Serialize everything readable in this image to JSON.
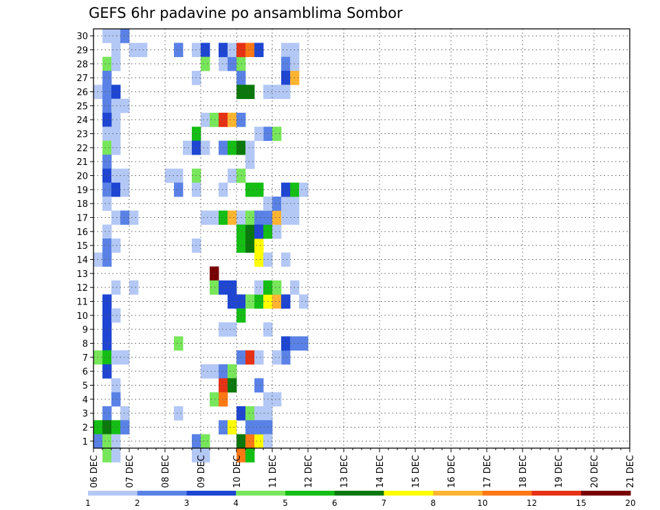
{
  "chart_data": {
    "type": "heatmap",
    "title": "GEFS 6hr padavine po ansamblima Sombor",
    "xlabel": "",
    "ylabel": "",
    "x_tick_labels": [
      "06 DEC",
      "07 DEC",
      "08 DEC",
      "09 DEC",
      "10 DEC",
      "11 DEC",
      "12 DEC",
      "13 DEC",
      "14 DEC",
      "15 DEC",
      "16 DEC",
      "17 DEC",
      "18 DEC",
      "19 DEC",
      "20 DEC",
      "21 DEC"
    ],
    "y_tick_labels": [
      "1",
      "2",
      "3",
      "4",
      "5",
      "6",
      "7",
      "8",
      "9",
      "10",
      "11",
      "12",
      "13",
      "14",
      "15",
      "16",
      "17",
      "18",
      "19",
      "20",
      "21",
      "22",
      "23",
      "24",
      "25",
      "26",
      "27",
      "28",
      "29",
      "30"
    ],
    "time_steps_per_day": 4,
    "xlim": [
      0,
      60
    ],
    "ylim": [
      0.5,
      30.5
    ],
    "grid": true,
    "colorbar": {
      "levels": [
        "1",
        "2",
        "3",
        "4",
        "5",
        "6",
        "7",
        "8",
        "10",
        "12",
        "15",
        "20"
      ],
      "colors": [
        "#b4c8f5",
        "#5a82e6",
        "#1e46d2",
        "#78e65a",
        "#14be14",
        "#0a780a",
        "#ffff00",
        "#ffb432",
        "#ff7814",
        "#e63214",
        "#780000"
      ]
    },
    "cells": [
      [
        1,
        30,
        0
      ],
      [
        2,
        30,
        0
      ],
      [
        2,
        29,
        0
      ],
      [
        1,
        28,
        3
      ],
      [
        2,
        28,
        0
      ],
      [
        1,
        27,
        1
      ],
      [
        0,
        26,
        0
      ],
      [
        1,
        26,
        1
      ],
      [
        2,
        26,
        2
      ],
      [
        1,
        25,
        1
      ],
      [
        2,
        25,
        0
      ],
      [
        3,
        25,
        0
      ],
      [
        2,
        24,
        0
      ],
      [
        1,
        24,
        2
      ],
      [
        1,
        23,
        0
      ],
      [
        2,
        23,
        0
      ],
      [
        1,
        22,
        3
      ],
      [
        2,
        22,
        0
      ],
      [
        1,
        21,
        1
      ],
      [
        1,
        20,
        2
      ],
      [
        2,
        20,
        0
      ],
      [
        3,
        20,
        0
      ],
      [
        1,
        19,
        1
      ],
      [
        2,
        19,
        2
      ],
      [
        3,
        19,
        0
      ],
      [
        1,
        18,
        0
      ],
      [
        2,
        17,
        0
      ],
      [
        3,
        17,
        1
      ],
      [
        4,
        17,
        0
      ],
      [
        1,
        16,
        0
      ],
      [
        1,
        15,
        1
      ],
      [
        2,
        15,
        0
      ],
      [
        0,
        14,
        0
      ],
      [
        1,
        14,
        1
      ],
      [
        2,
        12,
        0
      ],
      [
        1,
        11,
        2
      ],
      [
        1,
        10,
        2
      ],
      [
        2,
        10,
        0
      ],
      [
        1,
        9,
        2
      ],
      [
        1,
        8,
        2
      ],
      [
        0,
        7,
        3
      ],
      [
        1,
        7,
        4
      ],
      [
        2,
        7,
        0
      ],
      [
        3,
        7,
        0
      ],
      [
        1,
        6,
        2
      ],
      [
        2,
        5,
        0
      ],
      [
        2,
        4,
        1
      ],
      [
        1,
        3,
        1
      ],
      [
        3,
        3,
        0
      ],
      [
        0,
        2,
        4
      ],
      [
        1,
        2,
        5
      ],
      [
        2,
        2,
        4
      ],
      [
        3,
        2,
        1
      ],
      [
        0,
        1,
        1
      ],
      [
        1,
        1,
        3
      ],
      [
        2,
        1,
        0
      ],
      [
        1,
        0,
        3
      ],
      [
        2,
        0,
        0
      ],
      [
        3,
        30,
        1
      ],
      [
        4,
        29,
        0
      ],
      [
        5,
        29,
        0
      ],
      [
        4,
        12,
        0
      ],
      [
        9,
        29,
        1
      ],
      [
        8,
        20,
        0
      ],
      [
        9,
        20,
        0
      ],
      [
        9,
        19,
        1
      ],
      [
        9,
        8,
        3
      ],
      [
        9,
        3,
        0
      ],
      [
        11,
        29,
        0
      ],
      [
        12,
        29,
        2
      ],
      [
        12,
        28,
        3
      ],
      [
        14,
        28,
        0
      ],
      [
        15,
        28,
        1
      ],
      [
        16,
        28,
        3
      ],
      [
        14,
        29,
        2
      ],
      [
        15,
        29,
        0
      ],
      [
        16,
        29,
        9
      ],
      [
        17,
        29,
        8
      ],
      [
        18,
        29,
        2
      ],
      [
        11,
        27,
        0
      ],
      [
        16,
        27,
        1
      ],
      [
        16,
        26,
        5
      ],
      [
        17,
        26,
        5
      ],
      [
        12,
        24,
        0
      ],
      [
        13,
        24,
        3
      ],
      [
        14,
        24,
        9
      ],
      [
        15,
        24,
        7
      ],
      [
        16,
        24,
        1
      ],
      [
        11,
        23,
        4
      ],
      [
        10,
        22,
        0
      ],
      [
        11,
        22,
        2
      ],
      [
        12,
        22,
        0
      ],
      [
        14,
        22,
        1
      ],
      [
        15,
        22,
        4
      ],
      [
        16,
        22,
        5
      ],
      [
        17,
        22,
        0
      ],
      [
        17,
        21,
        0
      ],
      [
        11,
        20,
        3
      ],
      [
        15,
        20,
        0
      ],
      [
        16,
        20,
        3
      ],
      [
        11,
        19,
        0
      ],
      [
        14,
        19,
        0
      ],
      [
        12,
        17,
        0
      ],
      [
        13,
        17,
        0
      ],
      [
        14,
        17,
        4
      ],
      [
        15,
        17,
        7
      ],
      [
        16,
        17,
        0
      ],
      [
        16,
        16,
        4
      ],
      [
        16,
        15,
        4
      ],
      [
        17,
        16,
        5
      ],
      [
        18,
        16,
        6
      ],
      [
        17,
        15,
        5
      ],
      [
        18,
        15,
        6
      ],
      [
        11,
        15,
        0
      ],
      [
        13,
        13,
        10
      ],
      [
        13,
        12,
        3
      ],
      [
        14,
        12,
        2
      ],
      [
        15,
        12,
        2
      ],
      [
        15,
        11,
        2
      ],
      [
        16,
        11,
        2
      ],
      [
        17,
        11,
        3
      ],
      [
        18,
        11,
        4
      ],
      [
        16,
        10,
        4
      ],
      [
        14,
        9,
        0
      ],
      [
        15,
        9,
        0
      ],
      [
        16,
        7,
        1
      ],
      [
        17,
        7,
        9
      ],
      [
        18,
        7,
        0
      ],
      [
        12,
        6,
        0
      ],
      [
        13,
        6,
        0
      ],
      [
        14,
        6,
        1
      ],
      [
        15,
        6,
        3
      ],
      [
        14,
        5,
        9
      ],
      [
        15,
        5,
        5
      ],
      [
        13,
        4,
        3
      ],
      [
        14,
        4,
        8
      ],
      [
        16,
        3,
        2
      ],
      [
        17,
        3,
        3
      ],
      [
        11,
        1,
        1
      ],
      [
        12,
        1,
        3
      ],
      [
        11,
        0,
        0
      ],
      [
        12,
        0,
        0
      ],
      [
        14,
        2,
        1
      ],
      [
        15,
        2,
        6
      ],
      [
        16,
        1,
        5
      ],
      [
        17,
        1,
        8
      ],
      [
        18,
        1,
        6
      ],
      [
        16,
        0,
        8
      ],
      [
        17,
        0,
        4
      ],
      [
        17,
        17,
        3
      ],
      [
        18,
        17,
        1
      ],
      [
        18,
        16,
        2
      ],
      [
        19,
        16,
        4
      ],
      [
        20,
        16,
        0
      ],
      [
        18,
        14,
        6
      ],
      [
        19,
        14,
        0
      ],
      [
        17,
        19,
        4
      ],
      [
        18,
        19,
        4
      ],
      [
        19,
        12,
        4
      ],
      [
        19,
        11,
        6
      ],
      [
        20,
        11,
        7
      ],
      [
        21,
        11,
        2
      ],
      [
        18,
        12,
        0
      ],
      [
        19,
        12,
        4
      ],
      [
        20,
        12,
        3
      ],
      [
        19,
        9,
        0
      ],
      [
        21,
        29,
        0
      ],
      [
        22,
        29,
        0
      ],
      [
        21,
        28,
        1
      ],
      [
        22,
        28,
        0
      ],
      [
        21,
        27,
        2
      ],
      [
        22,
        27,
        7
      ],
      [
        20,
        26,
        0
      ],
      [
        21,
        26,
        0
      ],
      [
        19,
        26,
        0
      ],
      [
        19,
        23,
        1
      ],
      [
        20,
        23,
        3
      ],
      [
        18,
        23,
        0
      ],
      [
        18,
        5,
        1
      ],
      [
        19,
        17,
        1
      ],
      [
        20,
        17,
        7
      ],
      [
        21,
        17,
        0
      ],
      [
        19,
        18,
        0
      ],
      [
        20,
        18,
        1
      ],
      [
        21,
        18,
        0
      ],
      [
        22,
        18,
        0
      ],
      [
        21,
        19,
        2
      ],
      [
        22,
        19,
        4
      ],
      [
        23,
        19,
        0
      ],
      [
        22,
        17,
        0
      ],
      [
        21,
        14,
        0
      ],
      [
        22,
        12,
        0
      ],
      [
        21,
        7,
        1
      ],
      [
        20,
        7,
        0
      ],
      [
        21,
        8,
        2
      ],
      [
        22,
        8,
        1
      ],
      [
        23,
        8,
        1
      ],
      [
        23,
        11,
        0
      ],
      [
        19,
        4,
        0
      ],
      [
        20,
        4,
        0
      ],
      [
        19,
        3,
        0
      ],
      [
        18,
        3,
        0
      ],
      [
        17,
        2,
        1
      ],
      [
        18,
        2,
        1
      ],
      [
        19,
        2,
        1
      ],
      [
        19,
        1,
        0
      ]
    ]
  }
}
